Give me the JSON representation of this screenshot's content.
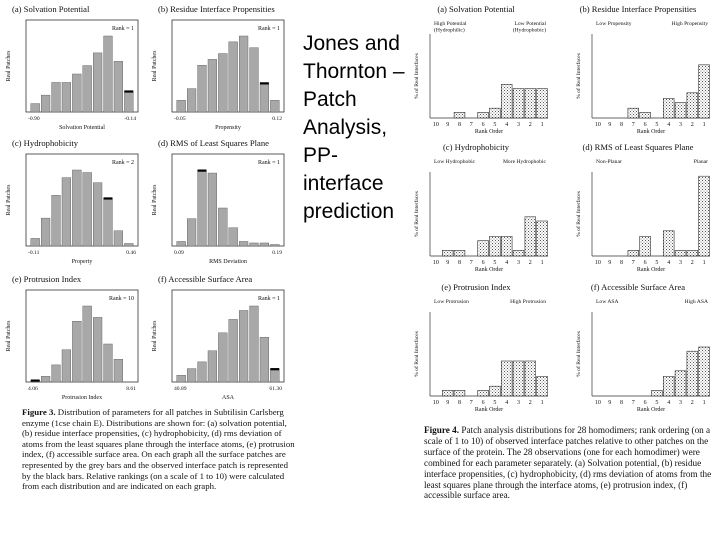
{
  "slide_title": "Jones and\nThornton –\nPatch\nAnalysis,\nPP-interface\nprediction",
  "left_caption": {
    "label": "Figure 3.",
    "text": " Distribution of parameters for all patches in Subtilisin Carlsberg enzyme (1cse chain E). Distributions are shown for: (a) solvation potential, (b) residue interface propensities, (c) hydrophobicity, (d) rms deviation of atoms from the least squares plane through the interface atoms, (e) protrusion index, (f) accessible surface area. On each graph all the surface patches are represented by the grey bars and the observed interface patch is represented by the black bars. Relative rankings (on a scale of 1 to 10) were calculated from each distribution and are indicated on each graph."
  },
  "right_caption": {
    "label": "Figure 4.",
    "text": " Patch analysis distributions for 28 homodimers; rank ordering (on a scale of 1 to 10) of observed interface patches relative to other patches on the surface of the protein. The 28 observations (one for each homodimer) were combined for each parameter separately. (a) Solvation potential, (b) residue interface propensities, (c) hydrophobicity, (d) rms deviation of atoms from the least squares plane through the interface atoms, (e) protrusion index, (f) accessible surface area."
  },
  "chart_data": [
    {
      "type": "bar",
      "panel": "left",
      "title": "(a) Solvation Potential",
      "ylabel": "Real Patches",
      "xlabel": "Solvation Potential",
      "x_min_label": "-0.90",
      "x_max_label": "-0.14",
      "rank": "Rank = 1",
      "values": [
        2,
        4,
        7,
        7,
        9,
        11,
        14,
        18,
        12,
        5
      ],
      "observed_index": 9
    },
    {
      "type": "bar",
      "panel": "left",
      "title": "(b) Residue Interface Propensities",
      "ylabel": "Real Patches",
      "xlabel": "Propensity",
      "x_min_label": "-0.05",
      "x_max_label": "0.12",
      "rank": "Rank = 1",
      "values": [
        2,
        4,
        8,
        9,
        10,
        12,
        13,
        11,
        5,
        2
      ],
      "observed_index": 8
    },
    {
      "type": "bar",
      "panel": "left",
      "title": "(c) Hydrophobicity",
      "ylabel": "Real Patches",
      "xlabel": "Property",
      "x_min_label": "-0.11",
      "x_max_label": "0.46",
      "rank": "Rank = 2",
      "values": [
        3,
        11,
        20,
        27,
        30,
        29,
        25,
        19,
        6,
        1
      ],
      "observed_index": 7
    },
    {
      "type": "bar",
      "panel": "left",
      "title": "(d) RMS of Least Squares Plane",
      "ylabel": "Real Patches",
      "xlabel": "RMS Deviation",
      "x_min_label": "0.09",
      "x_max_label": "0.19",
      "rank": "Rank = 1",
      "values": [
        3,
        18,
        50,
        48,
        25,
        12,
        3,
        2,
        2,
        1
      ],
      "observed_index": 2
    },
    {
      "type": "bar",
      "panel": "left",
      "title": "(e) Protrusion Index",
      "ylabel": "Real Patches",
      "xlabel": "Protrusion Index",
      "x_min_label": "4.06",
      "x_max_label": "8.61",
      "rank": "Rank = 10",
      "values": [
        1,
        3,
        9,
        17,
        32,
        40,
        34,
        20,
        12,
        0
      ],
      "observed_index": 0
    },
    {
      "type": "bar",
      "panel": "left",
      "title": "(f) Accessible Surface Area",
      "ylabel": "Real Patches",
      "xlabel": "ASA",
      "x_min_label": "40.89",
      "x_max_label": "61.30",
      "rank": "Rank = 1",
      "values": [
        3,
        6,
        9,
        14,
        22,
        28,
        32,
        34,
        20,
        6
      ],
      "observed_index": 9
    },
    {
      "type": "bar",
      "panel": "right",
      "title": "(a) Solvation Potential",
      "ylabel": "% of Real Interfaces",
      "xlabel": "Rank Order",
      "categories": [
        "10",
        "9",
        "8",
        "7",
        "6",
        "5",
        "4",
        "3",
        "2",
        "1"
      ],
      "left_note": "High Potential\n(Hydrophilic)",
      "right_note": "Low Potential\n(Hydrophobic)",
      "values": [
        0,
        0,
        4,
        0,
        4,
        7,
        24,
        21,
        21,
        21
      ],
      "ylim": [
        0,
        60
      ]
    },
    {
      "type": "bar",
      "panel": "right",
      "title": "(b) Residue Interface Propensities",
      "ylabel": "% of Real Interfaces",
      "xlabel": "Rank Order",
      "categories": [
        "10",
        "9",
        "8",
        "7",
        "6",
        "5",
        "4",
        "3",
        "2",
        "1"
      ],
      "left_note": "Low Propensity",
      "right_note": "High Propensity",
      "values": [
        0,
        0,
        0,
        7,
        4,
        0,
        14,
        11,
        18,
        38
      ],
      "ylim": [
        0,
        60
      ]
    },
    {
      "type": "bar",
      "panel": "right",
      "title": "(c) Hydrophobicity",
      "ylabel": "% of Real Interfaces",
      "xlabel": "Rank Order",
      "categories": [
        "10",
        "9",
        "8",
        "7",
        "6",
        "5",
        "4",
        "3",
        "2",
        "1"
      ],
      "left_note": "Low Hydrophobic",
      "right_note": "More Hydrophobic",
      "values": [
        0,
        4,
        4,
        0,
        11,
        14,
        14,
        4,
        28,
        25
      ],
      "ylim": [
        0,
        60
      ]
    },
    {
      "type": "bar",
      "panel": "right",
      "title": "(d) RMS of Least Squares Plane",
      "ylabel": "% of Real Interfaces",
      "xlabel": "Rank Order",
      "categories": [
        "10",
        "9",
        "8",
        "7",
        "6",
        "5",
        "4",
        "3",
        "2",
        "1"
      ],
      "left_note": "Non-Planar",
      "right_note": "Planar",
      "values": [
        0,
        0,
        0,
        4,
        14,
        0,
        18,
        4,
        4,
        57
      ],
      "ylim": [
        0,
        60
      ]
    },
    {
      "type": "bar",
      "panel": "right",
      "title": "(e) Protrusion Index",
      "ylabel": "% of Real Interfaces",
      "xlabel": "Rank Order",
      "categories": [
        "10",
        "9",
        "8",
        "7",
        "6",
        "5",
        "4",
        "3",
        "2",
        "1"
      ],
      "left_note": "Low Protrusion",
      "right_note": "High Protrusion",
      "values": [
        0,
        4,
        4,
        0,
        4,
        7,
        25,
        25,
        25,
        14
      ],
      "ylim": [
        0,
        60
      ]
    },
    {
      "type": "bar",
      "panel": "right",
      "title": "(f) Accessible Surface Area",
      "ylabel": "% of Real Interfaces",
      "xlabel": "Rank Order",
      "categories": [
        "10",
        "9",
        "8",
        "7",
        "6",
        "5",
        "4",
        "3",
        "2",
        "1"
      ],
      "left_note": "Low ASA",
      "right_note": "High ASA",
      "values": [
        0,
        0,
        0,
        0,
        0,
        4,
        14,
        18,
        32,
        35
      ],
      "ylim": [
        0,
        60
      ]
    }
  ]
}
